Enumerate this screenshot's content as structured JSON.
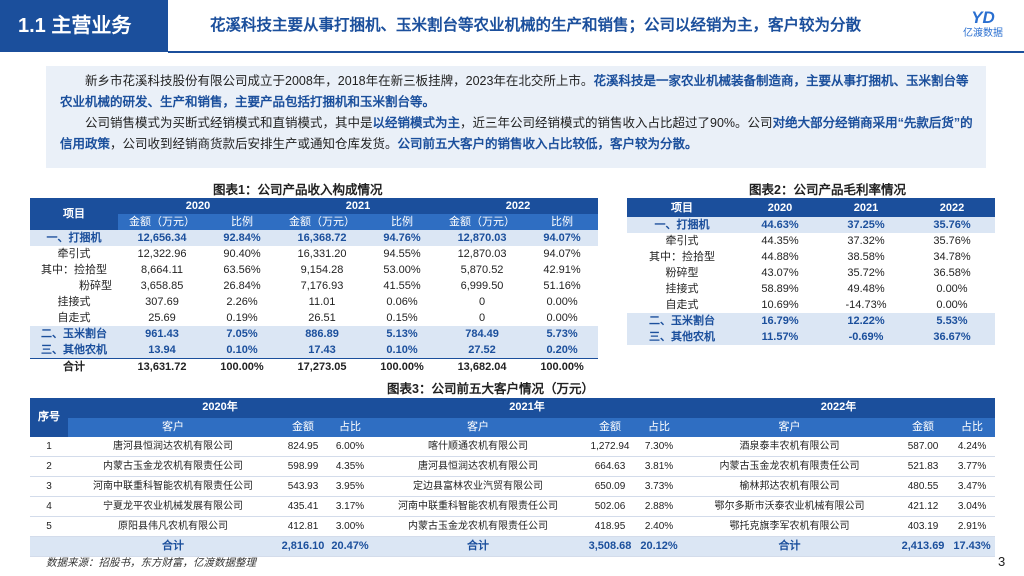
{
  "header": {
    "section": "1.1 主营业务",
    "title": "花溪科技主要从事打捆机、玉米割台等农业机械的生产和销售；公司以经销为主，客户较为分散",
    "logo_mark": "YD",
    "logo_text": "亿渡数据"
  },
  "intro": {
    "p1": [
      {
        "t": "新乡市花溪科技股份有限公司成立于2008年，2018年在新三板挂牌，2023年在北交所上市。",
        "h": false
      },
      {
        "t": "花溪科技是一家农业机械装备制造商，主要从事打捆机、玉米割台等农业机械的研发、生产和销售，主要产品包括打捆机和玉米割台等。",
        "h": true
      }
    ],
    "p2": [
      {
        "t": "公司销售模式为买断式经销模式和直销模式，其中是",
        "h": false
      },
      {
        "t": "以经销模式为主",
        "h": true
      },
      {
        "t": "，近三年公司经销模式的销售收入占比超过了90%。公司",
        "h": false
      },
      {
        "t": "对绝大部分经销商采用“先款后货”的信用政策",
        "h": true
      },
      {
        "t": "，公司收到经销商货款后安排生产或通知仓库发货。",
        "h": false
      },
      {
        "t": "公司前五大客户的销售收入占比较低，客户较为分散。",
        "h": true
      }
    ]
  },
  "table1": {
    "caption": "图表1：公司产品收入构成情况",
    "item_header": "项目",
    "years": [
      "2020",
      "2021",
      "2022"
    ],
    "sub_headers": [
      "金额（万元）",
      "比例"
    ],
    "rows": [
      {
        "label": "一、打捆机",
        "type": "bold",
        "cells": [
          "12,656.34",
          "92.84%",
          "16,368.72",
          "94.76%",
          "12,870.03",
          "94.07%"
        ]
      },
      {
        "label": "牵引式",
        "type": "normal",
        "cells": [
          "12,322.96",
          "90.40%",
          "16,331.20",
          "94.55%",
          "12,870.03",
          "94.07%"
        ]
      },
      {
        "label": "其中：捡拾型",
        "type": "normal",
        "cells": [
          "8,664.11",
          "63.56%",
          "9,154.28",
          "53.00%",
          "5,870.52",
          "42.91%"
        ]
      },
      {
        "label": "粉碎型",
        "type": "sub",
        "cells": [
          "3,658.85",
          "26.84%",
          "7,176.93",
          "41.55%",
          "6,999.50",
          "51.16%"
        ]
      },
      {
        "label": "挂接式",
        "type": "normal",
        "cells": [
          "307.69",
          "2.26%",
          "11.01",
          "0.06%",
          "0",
          "0.00%"
        ]
      },
      {
        "label": "自走式",
        "type": "normal",
        "cells": [
          "25.69",
          "0.19%",
          "26.51",
          "0.15%",
          "0",
          "0.00%"
        ]
      },
      {
        "label": "二、玉米割台",
        "type": "bold",
        "cells": [
          "961.43",
          "7.05%",
          "886.89",
          "5.13%",
          "784.49",
          "5.73%"
        ]
      },
      {
        "label": "三、其他农机",
        "type": "bold",
        "cells": [
          "13.94",
          "0.10%",
          "17.43",
          "0.10%",
          "27.52",
          "0.20%"
        ]
      },
      {
        "label": "合计",
        "type": "total",
        "cells": [
          "13,631.72",
          "100.00%",
          "17,273.05",
          "100.00%",
          "13,682.04",
          "100.00%"
        ]
      }
    ]
  },
  "table2": {
    "caption": "图表2：公司产品毛利率情况",
    "headers": [
      "项目",
      "2020",
      "2021",
      "2022"
    ],
    "rows": [
      {
        "label": "一、打捆机",
        "type": "bold",
        "cells": [
          "44.63%",
          "37.25%",
          "35.76%"
        ]
      },
      {
        "label": "牵引式",
        "type": "normal",
        "cells": [
          "44.35%",
          "37.32%",
          "35.76%"
        ]
      },
      {
        "label": "其中：捡拾型",
        "type": "normal",
        "cells": [
          "44.88%",
          "38.58%",
          "34.78%"
        ]
      },
      {
        "label": "粉碎型",
        "type": "normal",
        "cells": [
          "43.07%",
          "35.72%",
          "36.58%"
        ]
      },
      {
        "label": "挂接式",
        "type": "normal",
        "cells": [
          "58.89%",
          "49.48%",
          "0.00%"
        ]
      },
      {
        "label": "自走式",
        "type": "normal",
        "cells": [
          "10.69%",
          "-14.73%",
          "0.00%"
        ]
      },
      {
        "label": "二、玉米割台",
        "type": "bold",
        "cells": [
          "16.79%",
          "12.22%",
          "5.53%"
        ]
      },
      {
        "label": "三、其他农机",
        "type": "bold",
        "cells": [
          "11.57%",
          "-0.69%",
          "36.67%"
        ]
      }
    ]
  },
  "table3": {
    "caption": "图表3：公司前五大客户情况（万元）",
    "seq_header": "序号",
    "years": [
      "2020年",
      "2021年",
      "2022年"
    ],
    "sub_headers": [
      "客户",
      "金额",
      "占比"
    ],
    "rows": [
      {
        "no": "1",
        "cells": [
          "唐河县恒润达农机有限公司",
          "824.95",
          "6.00%",
          "喀什顺通农机有限公司",
          "1,272.94",
          "7.30%",
          "酒泉泰丰农机有限公司",
          "587.00",
          "4.24%"
        ]
      },
      {
        "no": "2",
        "cells": [
          "内蒙古玉金龙农机有限责任公司",
          "598.99",
          "4.35%",
          "唐河县恒润达农机有限公司",
          "664.63",
          "3.81%",
          "内蒙古玉金龙农机有限责任公司",
          "521.83",
          "3.77%"
        ]
      },
      {
        "no": "3",
        "cells": [
          "河南中联重科智能农机有限责任公司",
          "543.93",
          "3.95%",
          "定边县富林农业汽贸有限公司",
          "650.09",
          "3.73%",
          "榆林邦达农机有限公司",
          "480.55",
          "3.47%"
        ]
      },
      {
        "no": "4",
        "cells": [
          "宁夏龙平农业机械发展有限公司",
          "435.41",
          "3.17%",
          "河南中联重科智能农机有限责任公司",
          "502.06",
          "2.88%",
          "鄂尔多斯市沃泰农业机械有限公司",
          "421.12",
          "3.04%"
        ]
      },
      {
        "no": "5",
        "cells": [
          "原阳县伟凡农机有限公司",
          "412.81",
          "3.00%",
          "内蒙古玉金龙农机有限责任公司",
          "418.95",
          "2.40%",
          "鄂托克旗李军农机有限公司",
          "403.19",
          "2.91%"
        ]
      }
    ],
    "total": {
      "label": "合计",
      "cells": [
        "2,816.10",
        "20.47%",
        "3,508.68",
        "20.12%",
        "2,413.69",
        "17.43%"
      ]
    }
  },
  "footer": {
    "source": "数据来源：招股书，东方财富，亿渡数据整理",
    "page": "3"
  }
}
